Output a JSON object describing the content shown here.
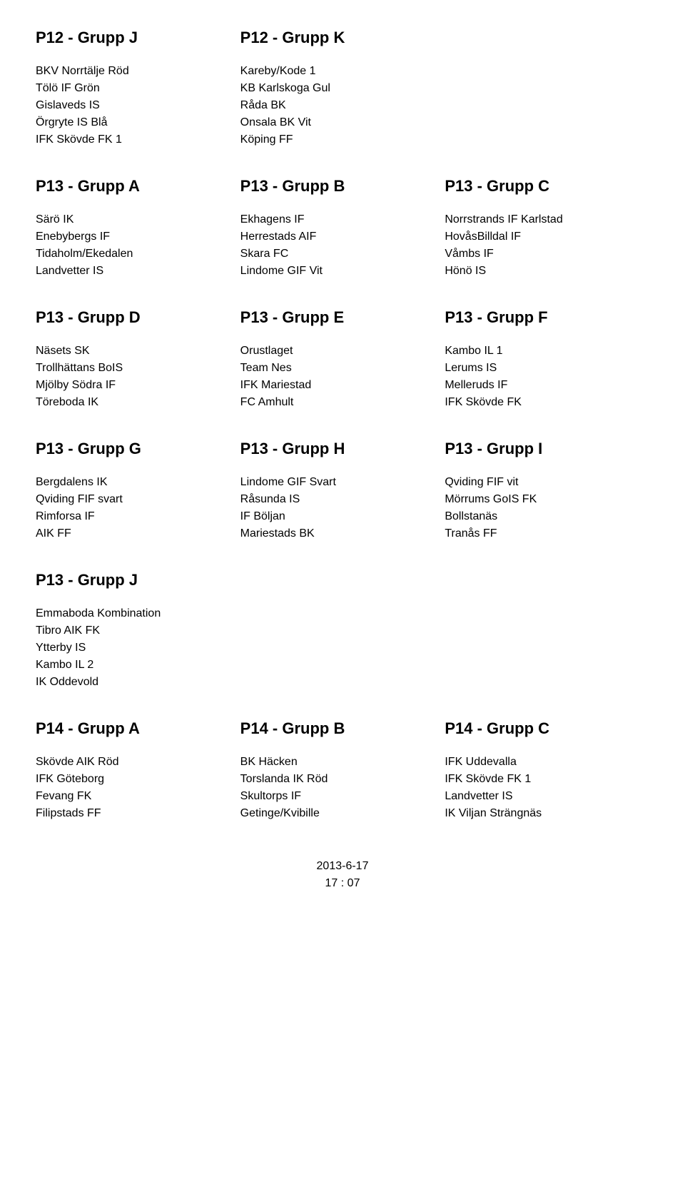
{
  "sections": [
    {
      "columns": [
        {
          "heading": "P12 - Grupp J",
          "teams": [
            "BKV Norrtälje Röd",
            "Tölö IF Grön",
            "Gislaveds IS",
            "Örgryte IS Blå",
            "IFK Skövde FK 1"
          ]
        },
        {
          "heading": "P12 - Grupp K",
          "teams": [
            "Kareby/Kode 1",
            "KB Karlskoga Gul",
            "Råda BK",
            "Onsala BK Vit",
            "Köping FF"
          ]
        },
        {
          "heading": "",
          "teams": []
        }
      ]
    },
    {
      "columns": [
        {
          "heading": "P13 - Grupp A",
          "teams": [
            "Särö IK",
            "Enebybergs IF",
            "Tidaholm/Ekedalen",
            "Landvetter IS"
          ]
        },
        {
          "heading": "P13 - Grupp B",
          "teams": [
            "Ekhagens IF",
            "Herrestads AIF",
            "Skara FC",
            "Lindome GIF Vit"
          ]
        },
        {
          "heading": "P13 - Grupp C",
          "teams": [
            "Norrstrands IF Karlstad",
            "HovåsBilldal IF",
            "Våmbs IF",
            "Hönö IS"
          ]
        }
      ]
    },
    {
      "columns": [
        {
          "heading": "P13 - Grupp D",
          "teams": [
            "Näsets SK",
            "Trollhättans BoIS",
            "Mjölby Södra IF",
            "Töreboda IK"
          ]
        },
        {
          "heading": "P13 - Grupp E",
          "teams": [
            "Orustlaget",
            "Team Nes",
            "IFK Mariestad",
            "FC Amhult"
          ]
        },
        {
          "heading": "P13 - Grupp F",
          "teams": [
            "Kambo IL 1",
            "Lerums IS",
            "Melleruds IF",
            "IFK Skövde FK"
          ]
        }
      ]
    },
    {
      "columns": [
        {
          "heading": "P13 - Grupp G",
          "teams": [
            "Bergdalens IK",
            "Qviding FIF svart",
            "Rimforsa IF",
            "AIK FF"
          ]
        },
        {
          "heading": "P13 - Grupp H",
          "teams": [
            "Lindome GIF Svart",
            "Råsunda IS",
            "IF Böljan",
            "Mariestads BK"
          ]
        },
        {
          "heading": "P13 - Grupp I",
          "teams": [
            "Qviding FIF vit",
            "Mörrums GoIS FK",
            "Bollstanäs",
            "Tranås FF"
          ]
        }
      ]
    },
    {
      "columns": [
        {
          "heading": "P13 - Grupp J",
          "teams": [
            "Emmaboda Kombination",
            "Tibro AIK FK",
            "Ytterby IS",
            "Kambo IL 2",
            "IK Oddevold"
          ]
        },
        {
          "heading": "",
          "teams": []
        },
        {
          "heading": "",
          "teams": []
        }
      ]
    },
    {
      "columns": [
        {
          "heading": "P14 - Grupp A",
          "teams": [
            "Skövde AIK Röd",
            "IFK Göteborg",
            "Fevang FK",
            "Filipstads FF"
          ]
        },
        {
          "heading": "P14 - Grupp B",
          "teams": [
            "BK Häcken",
            "Torslanda IK Röd",
            "Skultorps IF",
            "Getinge/Kvibille"
          ]
        },
        {
          "heading": "P14 - Grupp C",
          "teams": [
            "IFK Uddevalla",
            "IFK Skövde FK 1",
            "Landvetter IS",
            "IK Viljan Strängnäs"
          ]
        }
      ]
    }
  ],
  "footer": {
    "date": "2013-6-17",
    "time": "17 : 07"
  },
  "styling": {
    "heading_fontsize": 22,
    "team_fontsize": 16,
    "text_color": "#000000",
    "background_color": "#ffffff",
    "font_family": "Arial"
  }
}
